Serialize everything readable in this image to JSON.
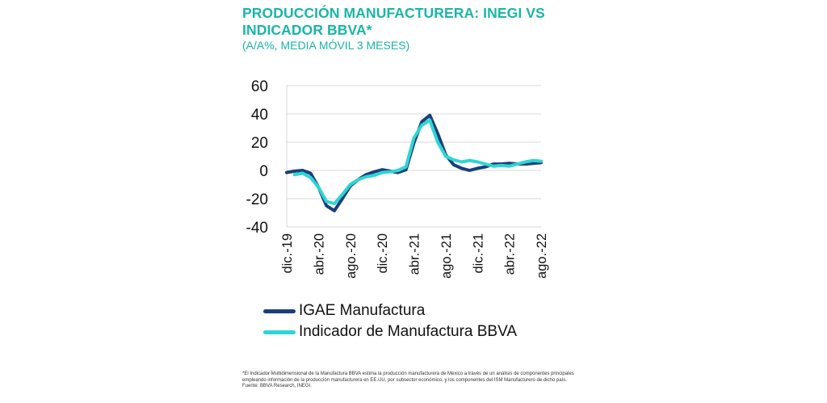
{
  "header": {
    "title": "PRODUCCIÓN MANUFACTURERA: INEGI VS INDICADOR BBVA*",
    "subtitle": "(A/A%, MEDIA MÓVIL 3 MESES)"
  },
  "colors": {
    "accent": "#1ab6a5",
    "igae": "#1b3f7c",
    "bbva": "#2ed6d3",
    "grid": "#d9d9d9"
  },
  "chart_data": {
    "type": "line",
    "ylim": [
      -40,
      60
    ],
    "yticks": [
      60,
      40,
      20,
      0,
      -20,
      -40
    ],
    "y_tick_labels": [
      "60",
      "40",
      "20",
      "0",
      "-20",
      "-40"
    ],
    "x": [
      "dic.-19",
      "ene.-20",
      "feb.-20",
      "mar.-20",
      "abr.-20",
      "may.-20",
      "jun.-20",
      "jul.-20",
      "ago.-20",
      "sep.-20",
      "oct.-20",
      "nov.-20",
      "dic.-20",
      "ene.-21",
      "feb.-21",
      "mar.-21",
      "abr.-21",
      "may.-21",
      "jun.-21",
      "jul.-21",
      "ago.-21",
      "sep.-21",
      "oct.-21",
      "nov.-21",
      "dic.-21",
      "ene.-22",
      "feb.-22",
      "mar.-22",
      "abr.-22",
      "may.-22",
      "jun.-22",
      "jul.-22",
      "ago.-22"
    ],
    "x_tick_labels": [
      "dic.-19",
      "abr.-20",
      "ago.-20",
      "dic.-20",
      "abr.-21",
      "ago.-21",
      "dic.-21",
      "abr.-22",
      "ago.-22"
    ],
    "x_tick_indices": [
      0,
      4,
      8,
      12,
      16,
      20,
      24,
      28,
      32
    ],
    "grid": true,
    "legend_position": "bottom-left",
    "series": [
      {
        "name": "IGAE Manufactura",
        "values": [
          -1.5,
          -0.5,
          0,
          -2,
          -12,
          -25,
          -28.5,
          -20,
          -11,
          -6.5,
          -3,
          -1,
          0.5,
          -0.5,
          -1.5,
          0.5,
          19.5,
          34.5,
          39,
          26,
          11,
          4,
          1.5,
          0,
          1.5,
          2.5,
          4.5,
          4.5,
          5,
          4.5,
          4.5,
          5,
          5.5
        ]
      },
      {
        "name": "Indicador de Manufactura BBVA",
        "values": [
          null,
          -3,
          -2,
          -5,
          -12,
          -22,
          -23.5,
          -17,
          -10,
          -6.5,
          -4.5,
          -3.5,
          -1.5,
          -1,
          0,
          2.5,
          23,
          32,
          35.5,
          20,
          10,
          7.5,
          6,
          7,
          6,
          4.5,
          3,
          3.5,
          3,
          4.5,
          6,
          7,
          6.5
        ]
      }
    ]
  },
  "legend": {
    "items": [
      {
        "label": "IGAE Manufactura"
      },
      {
        "label": "Indicador de Manufactura BBVA"
      }
    ]
  },
  "footnote": {
    "text": "*El Indicador Multidimensional de la Manufactura BBVA estima la producción manufacturera de México a través de un análisis de componentes principales empleando información de la producción manufacturera en EE.UU. por subsector económico, y los componentes del ISM Manufacturero de dicho país.",
    "source": "Fuente: BBVA Research, INEGI."
  }
}
